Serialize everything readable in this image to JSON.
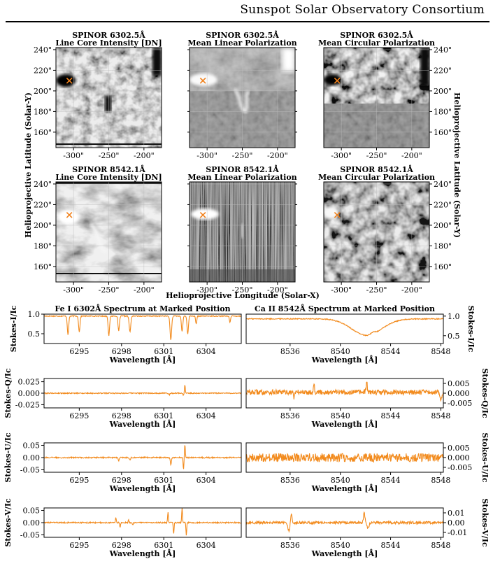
{
  "header": {
    "title": "Sunspot Solar Observatory Consortium"
  },
  "colors": {
    "spectrum": "#f28a1c",
    "marker": "#f0821e",
    "axis": "#000000",
    "grid": "#bbbbbb"
  },
  "map_panels": [
    {
      "title1": "SPINOR 6302.5Å",
      "title2": "Line Core Intensity [DN]"
    },
    {
      "title1": "SPINOR 6302.5Å",
      "title2": "Mean Linear Polarization"
    },
    {
      "title1": "SPINOR 6302.5Å",
      "title2": "Mean Circular Polarization"
    },
    {
      "title1": "SPINOR 8542.1Å",
      "title2": "Line Core Intensity [DN]"
    },
    {
      "title1": "SPINOR 8542.1Å",
      "title2": "Mean Linear Polarization"
    },
    {
      "title1": "SPINOR 8542.1Å",
      "title2": "Mean Circular Polarization"
    }
  ],
  "map_axes": {
    "xlabel": "Helioprojective Longitude (Solar-X)",
    "ylabel_left": "Helioprojective Latitude (Solar-Y)",
    "ylabel_right": "Helioprojective Latitude (Solar-Y)",
    "x_ticks": [
      -300,
      -250,
      -200
    ],
    "x_tick_labels": [
      "-300\"",
      "-250\"",
      "-200\""
    ],
    "y_ticks": [
      160,
      180,
      200,
      220,
      240
    ],
    "y_tick_labels": [
      "160\"",
      "180\"",
      "200\"",
      "220\"",
      "240\""
    ],
    "xlim": [
      -325,
      -175
    ],
    "ylim": [
      145,
      242
    ],
    "marker": {
      "x": -306,
      "y": 210,
      "symbol": "×"
    }
  },
  "chart_data": [
    {
      "type": "line",
      "panel": "fe-stokes-i",
      "title": "Fe I 6302Å Spectrum at Marked Position",
      "xlabel": "Wavelength [Å]",
      "ylabel": "Stokes-I/Ic",
      "xlim": [
        6292.5,
        6306.5
      ],
      "ylim": [
        0.25,
        1.0
      ],
      "x_ticks": [
        6295,
        6298,
        6301,
        6304
      ],
      "y_ticks": [
        0.5,
        1.0
      ],
      "y_tick_labels": [
        "0.5",
        "1.0"
      ],
      "continuum": 0.95,
      "noise": 0.012,
      "features": [
        [
          6294.2,
          -0.47,
          0.07
        ],
        [
          6295.0,
          -0.4,
          0.07
        ],
        [
          6297.1,
          -0.5,
          0.07
        ],
        [
          6297.8,
          -0.38,
          0.07
        ],
        [
          6298.6,
          -0.4,
          0.08
        ],
        [
          6301.5,
          -0.6,
          0.08
        ],
        [
          6302.3,
          -0.4,
          0.07
        ],
        [
          6302.7,
          -0.45,
          0.07
        ],
        [
          6303.3,
          -0.2,
          0.06
        ],
        [
          6305.7,
          -0.15,
          0.06
        ]
      ]
    },
    {
      "type": "line",
      "panel": "ca-stokes-i",
      "title": "Ca II 8542Å Spectrum at Marked Position",
      "xlabel": "Wavelength [Å]",
      "ylabel": "Stokes-I/Ic",
      "xlim": [
        8532.5,
        8548.2
      ],
      "ylim": [
        0.3,
        1.05
      ],
      "x_ticks": [
        8536,
        8540,
        8544,
        8548
      ],
      "y_ticks": [
        0.5,
        1.0
      ],
      "y_tick_labels": [
        "0.5",
        "1.0"
      ],
      "continuum": 0.93,
      "noise": 0.012,
      "features": [
        [
          8542.1,
          -0.42,
          1.7
        ],
        [
          8542.6,
          0.05,
          0.25
        ]
      ]
    },
    {
      "type": "line",
      "panel": "fe-stokes-q",
      "xlabel": "Wavelength [Å]",
      "ylabel": "Stokes-Q/Ic",
      "xlim": [
        6292.5,
        6306.5
      ],
      "ylim": [
        -0.032,
        0.032
      ],
      "x_ticks": [
        6295,
        6298,
        6301,
        6304
      ],
      "y_ticks": [
        -0.025,
        0.0,
        0.025
      ],
      "y_tick_labels": [
        "-0.025",
        "0.000",
        "0.025"
      ],
      "continuum": 0.0,
      "noise": 0.0012,
      "features": [
        [
          6302.5,
          0.018,
          0.04
        ],
        [
          6302.4,
          -0.004,
          0.05
        ],
        [
          6301.4,
          -0.003,
          0.06
        ]
      ]
    },
    {
      "type": "line",
      "panel": "ca-stokes-q",
      "xlabel": "Wavelength [Å]",
      "ylabel": "Stokes-Q/Ic",
      "xlim": [
        8532.5,
        8548.2
      ],
      "ylim": [
        -0.0075,
        0.0075
      ],
      "x_ticks": [
        8536,
        8540,
        8544,
        8548
      ],
      "y_ticks": [
        -0.005,
        0.0,
        0.005
      ],
      "y_tick_labels": [
        "-0.005",
        "0.000",
        "0.005"
      ],
      "continuum": 0.0005,
      "noise": 0.0013,
      "features": [
        [
          8537.9,
          0.005,
          0.05
        ],
        [
          8542.1,
          0.006,
          0.06
        ],
        [
          8536.3,
          -0.003,
          0.05
        ],
        [
          8548.0,
          -0.004,
          0.1
        ]
      ]
    },
    {
      "type": "line",
      "panel": "fe-stokes-u",
      "xlabel": "Wavelength [Å]",
      "ylabel": "Stokes-U/Ic",
      "xlim": [
        6292.5,
        6306.5
      ],
      "ylim": [
        -0.06,
        0.06
      ],
      "x_ticks": [
        6295,
        6298,
        6301,
        6304
      ],
      "y_ticks": [
        -0.05,
        0.0,
        0.05
      ],
      "y_tick_labels": [
        "-0.05",
        "0.00",
        "0.05"
      ],
      "continuum": 0.0,
      "noise": 0.0025,
      "features": [
        [
          6302.5,
          0.055,
          0.04
        ],
        [
          6302.4,
          -0.05,
          0.04
        ],
        [
          6301.5,
          -0.03,
          0.05
        ],
        [
          6297.8,
          -0.015,
          0.05
        ],
        [
          6298.6,
          -0.012,
          0.05
        ]
      ]
    },
    {
      "type": "line",
      "panel": "ca-stokes-u",
      "xlabel": "Wavelength [Å]",
      "ylabel": "Stokes-U/Ic",
      "xlim": [
        8532.5,
        8548.2
      ],
      "ylim": [
        -0.0075,
        0.0075
      ],
      "x_ticks": [
        8536,
        8540,
        8544,
        8548
      ],
      "y_ticks": [
        -0.005,
        0.0,
        0.005
      ],
      "y_tick_labels": [
        "-0.005",
        "0.000",
        "0.005"
      ],
      "continuum": 0.0,
      "noise": 0.0022,
      "features": []
    },
    {
      "type": "line",
      "panel": "fe-stokes-v",
      "xlabel": "Wavelength [Å]",
      "ylabel": "Stokes-V/Ic",
      "xlim": [
        6292.5,
        6306.5
      ],
      "ylim": [
        -0.06,
        0.06
      ],
      "x_ticks": [
        6295,
        6298,
        6301,
        6304
      ],
      "y_ticks": [
        -0.05,
        0.0,
        0.05
      ],
      "y_tick_labels": [
        "-0.05",
        "0.00",
        "0.05"
      ],
      "continuum": 0.0,
      "noise": 0.0025,
      "features": [
        [
          6297.6,
          0.02,
          0.04
        ],
        [
          6297.9,
          -0.02,
          0.04
        ],
        [
          6301.3,
          0.045,
          0.04
        ],
        [
          6301.7,
          -0.045,
          0.04
        ],
        [
          6302.3,
          0.06,
          0.04
        ],
        [
          6302.6,
          -0.05,
          0.04
        ],
        [
          6298.5,
          0.01,
          0.04
        ],
        [
          6298.8,
          -0.01,
          0.04
        ]
      ]
    },
    {
      "type": "line",
      "panel": "ca-stokes-v",
      "xlabel": "Wavelength [Å]",
      "ylabel": "Stokes-V/Ic",
      "xlim": [
        8532.5,
        8548.2
      ],
      "ylim": [
        -0.015,
        0.015
      ],
      "x_ticks": [
        8536,
        8540,
        8544,
        8548
      ],
      "y_ticks": [
        -0.01,
        0.0,
        0.01
      ],
      "y_tick_labels": [
        "-0.01",
        "0.00",
        "0.01"
      ],
      "continuum": 0.0,
      "noise": 0.0013,
      "features": [
        [
          8535.9,
          -0.008,
          0.12
        ],
        [
          8536.1,
          0.01,
          0.08
        ],
        [
          8541.9,
          0.01,
          0.08
        ],
        [
          8542.2,
          -0.006,
          0.1
        ]
      ]
    }
  ]
}
